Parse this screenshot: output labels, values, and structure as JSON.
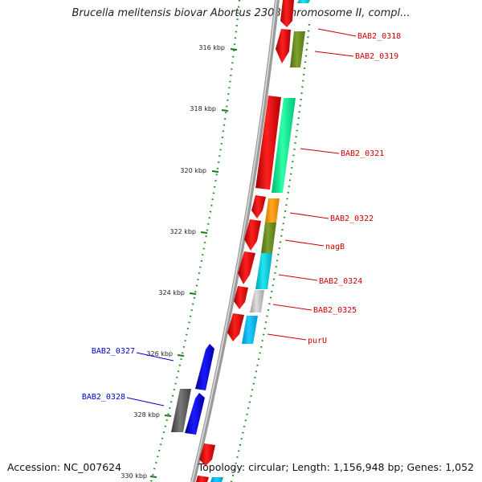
{
  "title": "Brucella melitensis biovar Abortus 2308 chromosome II, compl...",
  "footer": {
    "accession": "Accession: NC_007624",
    "summary": "Topology: circular; Length: 1,156,948 bp; Genes: 1,052"
  },
  "ticks": [
    "316 kbp",
    "318 kbp",
    "320 kbp",
    "322 kbp",
    "324 kbp",
    "326 kbp",
    "328 kbp",
    "330 kbp"
  ],
  "gene_labels": [
    {
      "name": "BAB2_0318",
      "color": "#cc0000",
      "side": "right"
    },
    {
      "name": "BAB2_0319",
      "color": "#cc0000",
      "side": "right"
    },
    {
      "name": "BAB2_0321",
      "color": "#cc0000",
      "side": "right"
    },
    {
      "name": "BAB2_0322",
      "color": "#cc0000",
      "side": "right"
    },
    {
      "name": "nagB",
      "color": "#cc0000",
      "side": "right"
    },
    {
      "name": "BAB2_0324",
      "color": "#cc0000",
      "side": "right"
    },
    {
      "name": "BAB2_0325",
      "color": "#cc0000",
      "side": "right"
    },
    {
      "name": "purU",
      "color": "#cc0000",
      "side": "right"
    },
    {
      "name": "BAB2_0327",
      "color": "#0000cc",
      "side": "left"
    },
    {
      "name": "BAB2_0328",
      "color": "#0000cc",
      "side": "left"
    }
  ],
  "colors": {
    "backbone": "#8c8c8c",
    "tick_mark": "#1a7a1a",
    "gc_dots": "#1a8c1a",
    "cds_red": "#ee0000",
    "cds_blue": "#0000ee",
    "cds_gray": "#666666",
    "cog_green": "#6b8e23",
    "cog_mint": "#00e08a",
    "cog_orange": "#f0960a",
    "cog_cyan": "#00c8d8",
    "cog_silver": "#c0c0c0",
    "cog_sky": "#00b8f0"
  }
}
